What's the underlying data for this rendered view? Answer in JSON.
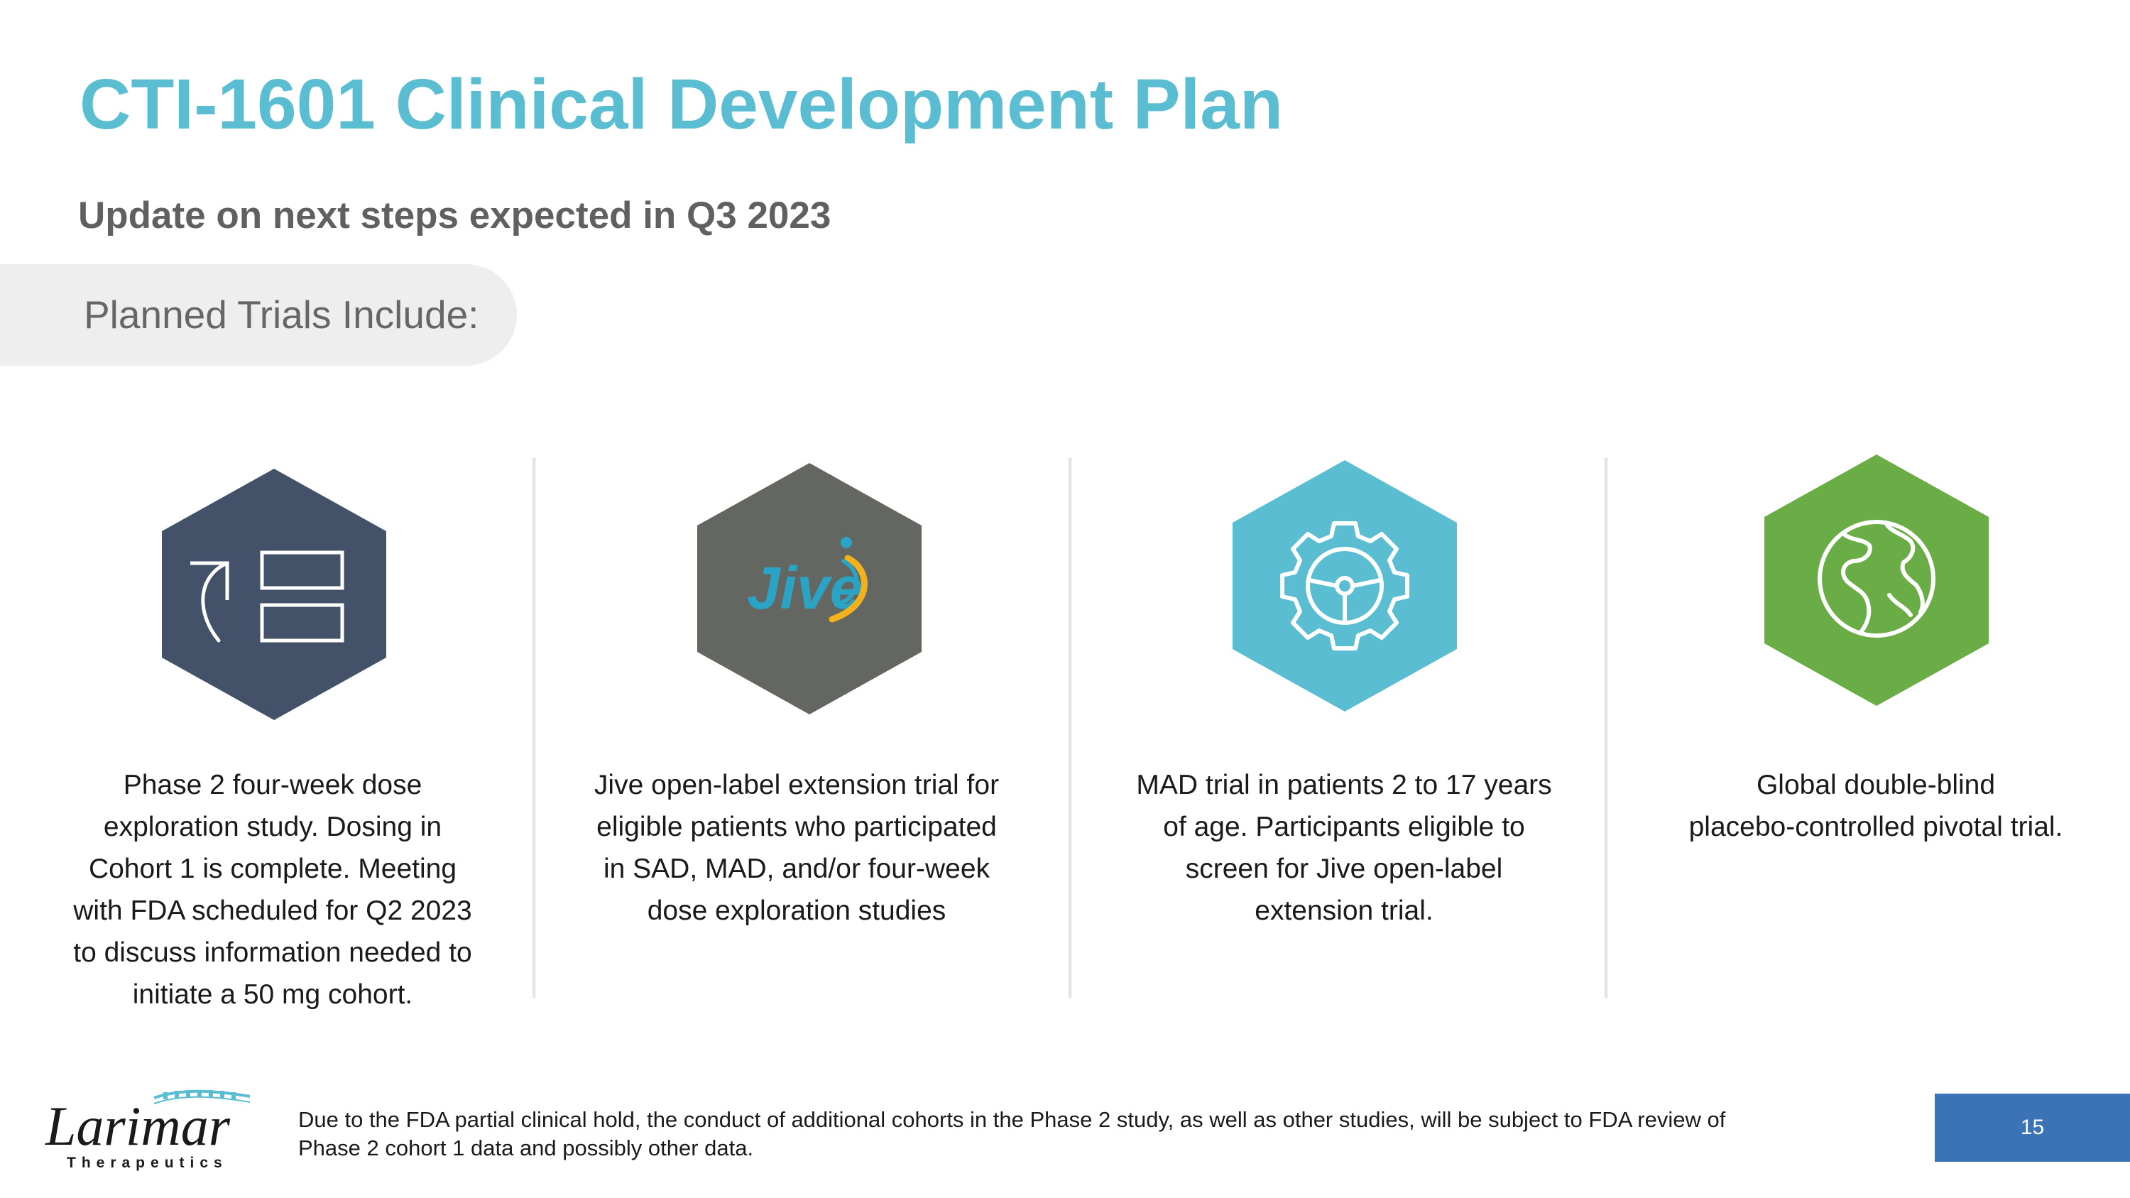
{
  "slide": {
    "title": "CTI-1601 Clinical Development Plan",
    "subtitle": "Update on next steps expected in Q3 2023",
    "section_label": "Planned Trials Include:",
    "trials": [
      {
        "icon": "move-to-boxes-icon",
        "color": "#435268",
        "lines": [
          "Phase 2 four-week dose",
          "exploration study. Dosing in",
          "Cohort 1 is complete. Meeting",
          "with FDA scheduled for Q2 2023",
          "to discuss information needed to",
          "initiate a 50 mg cohort."
        ]
      },
      {
        "icon": "jive-logo-icon",
        "icon_text": "Jive",
        "color": "#646662",
        "lines": [
          "Jive open-label extension trial for",
          "eligible patients who participated",
          "in SAD, MAD, and/or four-week",
          "dose exploration studies"
        ]
      },
      {
        "icon": "gear-steering-icon",
        "color": "#5bbdd1",
        "lines": [
          "MAD trial in patients 2 to 17 years",
          "of age. Participants eligible to",
          "screen for Jive open-label",
          "extension trial."
        ]
      },
      {
        "icon": "globe-icon",
        "color": "#6aac46",
        "lines": [
          "Global double-blind",
          "placebo-controlled pivotal trial."
        ]
      }
    ],
    "footnote": "Due to the FDA partial clinical hold, the conduct of additional cohorts in the Phase 2 study, as well as other studies, will be subject to FDA review of Phase 2 cohort 1 data and possibly other data.",
    "page_number": "15",
    "logo": {
      "name": "Larimar",
      "tagline": "Therapeutics"
    },
    "colors": {
      "title": "#5bbdd1",
      "page_box": "#3b73b6",
      "jive_blue": "#2aa3c4",
      "jive_orange": "#f1b21c"
    }
  }
}
